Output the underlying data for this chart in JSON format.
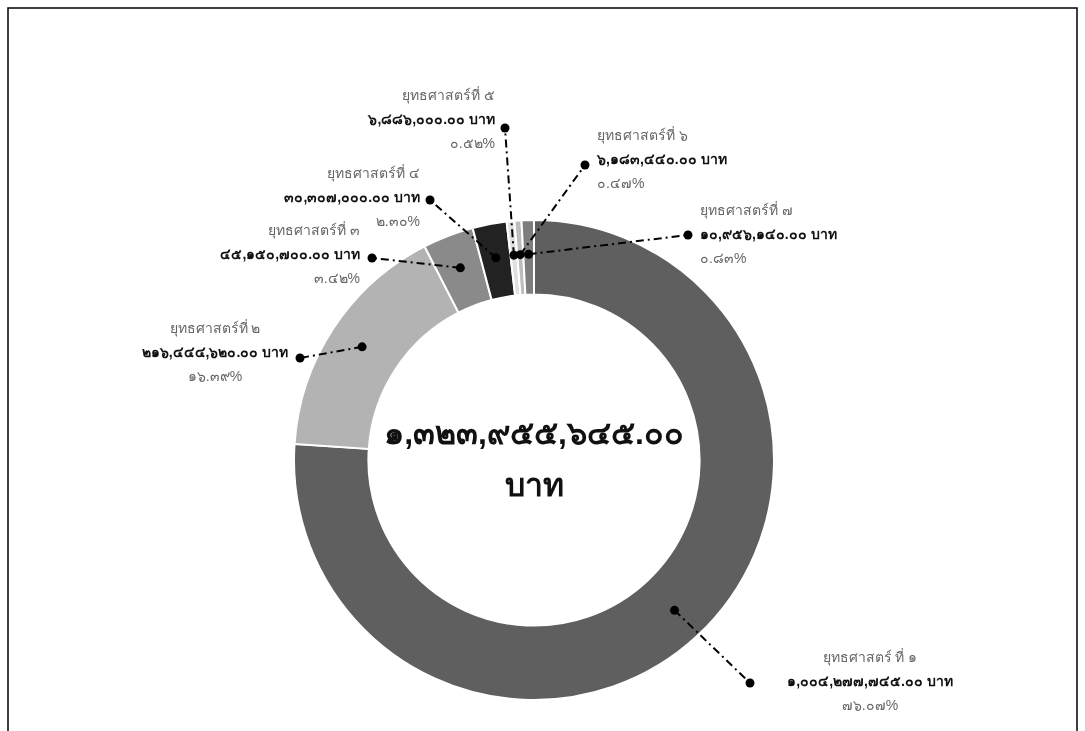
{
  "chart_data": {
    "type": "donut",
    "categories": [
      "ยุทธศาสตร์ ที่ ๑",
      "ยุทธศาสตร์ที่ ๒",
      "ยุทธศาสตร์ที่ ๓",
      "ยุทธศาสตร์ที่ ๔",
      "ยุทธศาสตร์ที่ ๕",
      "ยุทธศาสตร์ที่ ๖",
      "ยุทธศาสตร์ที่ ๗"
    ],
    "values": [
      1004277745,
      216444620,
      45150700,
      30307000,
      6886000,
      6183440,
      10956140
    ],
    "colors": [
      "#5f5f5f",
      "#b3b3b3",
      "#8a8a8a",
      "#222222",
      "#e0e0e0",
      "#bcbcbc",
      "#7d7d7d"
    ],
    "value_labels": [
      "๑,๐๐๔,๒๗๗,๗๔๕.๐๐ บาท\n๗๖.๐๗%",
      "๒๑๖,๔๔๔,๖๒๐.๐๐ บาท\n๑๖.๓๙%",
      "๔๕,๑๕๐,๗๐๐.๐๐ บาท\n๓.๔๒%",
      "๓๐,๓๐๗,๐๐๐.๐๐ บาท\n๒.๓๐%",
      "๖,๘๘๖,๐๐๐.๐๐ บาท\n๐.๕๒%",
      "๖,๑๘๓,๔๔๐.๐๐ บาท\n๐.๔๗%",
      "๑๐,๙๕๖,๑๔๐.๐๐ บาท\n๐.๘๓%"
    ],
    "annotations": [
      "๑,๓๒๓,๙๕๕,๖๔๕.๐๐\nบาท"
    ]
  }
}
